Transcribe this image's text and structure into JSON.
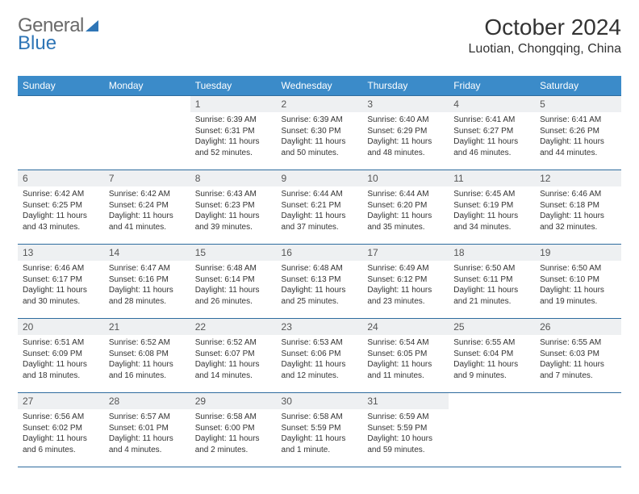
{
  "logo": {
    "text1": "General",
    "text2": "Blue"
  },
  "title": "October 2024",
  "location": "Luotian, Chongqing, China",
  "colors": {
    "header_bg": "#3b8bc9",
    "header_text": "#ffffff",
    "row_border": "#2e6b9e",
    "daynum_bg": "#eef0f2",
    "body_text": "#333333",
    "logo_gray": "#6a6a6a",
    "logo_blue": "#2e75b6"
  },
  "weekdays": [
    "Sunday",
    "Monday",
    "Tuesday",
    "Wednesday",
    "Thursday",
    "Friday",
    "Saturday"
  ],
  "weeks": [
    [
      {
        "n": "",
        "sr": "",
        "ss": "",
        "dl": ""
      },
      {
        "n": "",
        "sr": "",
        "ss": "",
        "dl": ""
      },
      {
        "n": "1",
        "sr": "Sunrise: 6:39 AM",
        "ss": "Sunset: 6:31 PM",
        "dl": "Daylight: 11 hours and 52 minutes."
      },
      {
        "n": "2",
        "sr": "Sunrise: 6:39 AM",
        "ss": "Sunset: 6:30 PM",
        "dl": "Daylight: 11 hours and 50 minutes."
      },
      {
        "n": "3",
        "sr": "Sunrise: 6:40 AM",
        "ss": "Sunset: 6:29 PM",
        "dl": "Daylight: 11 hours and 48 minutes."
      },
      {
        "n": "4",
        "sr": "Sunrise: 6:41 AM",
        "ss": "Sunset: 6:27 PM",
        "dl": "Daylight: 11 hours and 46 minutes."
      },
      {
        "n": "5",
        "sr": "Sunrise: 6:41 AM",
        "ss": "Sunset: 6:26 PM",
        "dl": "Daylight: 11 hours and 44 minutes."
      }
    ],
    [
      {
        "n": "6",
        "sr": "Sunrise: 6:42 AM",
        "ss": "Sunset: 6:25 PM",
        "dl": "Daylight: 11 hours and 43 minutes."
      },
      {
        "n": "7",
        "sr": "Sunrise: 6:42 AM",
        "ss": "Sunset: 6:24 PM",
        "dl": "Daylight: 11 hours and 41 minutes."
      },
      {
        "n": "8",
        "sr": "Sunrise: 6:43 AM",
        "ss": "Sunset: 6:23 PM",
        "dl": "Daylight: 11 hours and 39 minutes."
      },
      {
        "n": "9",
        "sr": "Sunrise: 6:44 AM",
        "ss": "Sunset: 6:21 PM",
        "dl": "Daylight: 11 hours and 37 minutes."
      },
      {
        "n": "10",
        "sr": "Sunrise: 6:44 AM",
        "ss": "Sunset: 6:20 PM",
        "dl": "Daylight: 11 hours and 35 minutes."
      },
      {
        "n": "11",
        "sr": "Sunrise: 6:45 AM",
        "ss": "Sunset: 6:19 PM",
        "dl": "Daylight: 11 hours and 34 minutes."
      },
      {
        "n": "12",
        "sr": "Sunrise: 6:46 AM",
        "ss": "Sunset: 6:18 PM",
        "dl": "Daylight: 11 hours and 32 minutes."
      }
    ],
    [
      {
        "n": "13",
        "sr": "Sunrise: 6:46 AM",
        "ss": "Sunset: 6:17 PM",
        "dl": "Daylight: 11 hours and 30 minutes."
      },
      {
        "n": "14",
        "sr": "Sunrise: 6:47 AM",
        "ss": "Sunset: 6:16 PM",
        "dl": "Daylight: 11 hours and 28 minutes."
      },
      {
        "n": "15",
        "sr": "Sunrise: 6:48 AM",
        "ss": "Sunset: 6:14 PM",
        "dl": "Daylight: 11 hours and 26 minutes."
      },
      {
        "n": "16",
        "sr": "Sunrise: 6:48 AM",
        "ss": "Sunset: 6:13 PM",
        "dl": "Daylight: 11 hours and 25 minutes."
      },
      {
        "n": "17",
        "sr": "Sunrise: 6:49 AM",
        "ss": "Sunset: 6:12 PM",
        "dl": "Daylight: 11 hours and 23 minutes."
      },
      {
        "n": "18",
        "sr": "Sunrise: 6:50 AM",
        "ss": "Sunset: 6:11 PM",
        "dl": "Daylight: 11 hours and 21 minutes."
      },
      {
        "n": "19",
        "sr": "Sunrise: 6:50 AM",
        "ss": "Sunset: 6:10 PM",
        "dl": "Daylight: 11 hours and 19 minutes."
      }
    ],
    [
      {
        "n": "20",
        "sr": "Sunrise: 6:51 AM",
        "ss": "Sunset: 6:09 PM",
        "dl": "Daylight: 11 hours and 18 minutes."
      },
      {
        "n": "21",
        "sr": "Sunrise: 6:52 AM",
        "ss": "Sunset: 6:08 PM",
        "dl": "Daylight: 11 hours and 16 minutes."
      },
      {
        "n": "22",
        "sr": "Sunrise: 6:52 AM",
        "ss": "Sunset: 6:07 PM",
        "dl": "Daylight: 11 hours and 14 minutes."
      },
      {
        "n": "23",
        "sr": "Sunrise: 6:53 AM",
        "ss": "Sunset: 6:06 PM",
        "dl": "Daylight: 11 hours and 12 minutes."
      },
      {
        "n": "24",
        "sr": "Sunrise: 6:54 AM",
        "ss": "Sunset: 6:05 PM",
        "dl": "Daylight: 11 hours and 11 minutes."
      },
      {
        "n": "25",
        "sr": "Sunrise: 6:55 AM",
        "ss": "Sunset: 6:04 PM",
        "dl": "Daylight: 11 hours and 9 minutes."
      },
      {
        "n": "26",
        "sr": "Sunrise: 6:55 AM",
        "ss": "Sunset: 6:03 PM",
        "dl": "Daylight: 11 hours and 7 minutes."
      }
    ],
    [
      {
        "n": "27",
        "sr": "Sunrise: 6:56 AM",
        "ss": "Sunset: 6:02 PM",
        "dl": "Daylight: 11 hours and 6 minutes."
      },
      {
        "n": "28",
        "sr": "Sunrise: 6:57 AM",
        "ss": "Sunset: 6:01 PM",
        "dl": "Daylight: 11 hours and 4 minutes."
      },
      {
        "n": "29",
        "sr": "Sunrise: 6:58 AM",
        "ss": "Sunset: 6:00 PM",
        "dl": "Daylight: 11 hours and 2 minutes."
      },
      {
        "n": "30",
        "sr": "Sunrise: 6:58 AM",
        "ss": "Sunset: 5:59 PM",
        "dl": "Daylight: 11 hours and 1 minute."
      },
      {
        "n": "31",
        "sr": "Sunrise: 6:59 AM",
        "ss": "Sunset: 5:59 PM",
        "dl": "Daylight: 10 hours and 59 minutes."
      },
      {
        "n": "",
        "sr": "",
        "ss": "",
        "dl": ""
      },
      {
        "n": "",
        "sr": "",
        "ss": "",
        "dl": ""
      }
    ]
  ]
}
